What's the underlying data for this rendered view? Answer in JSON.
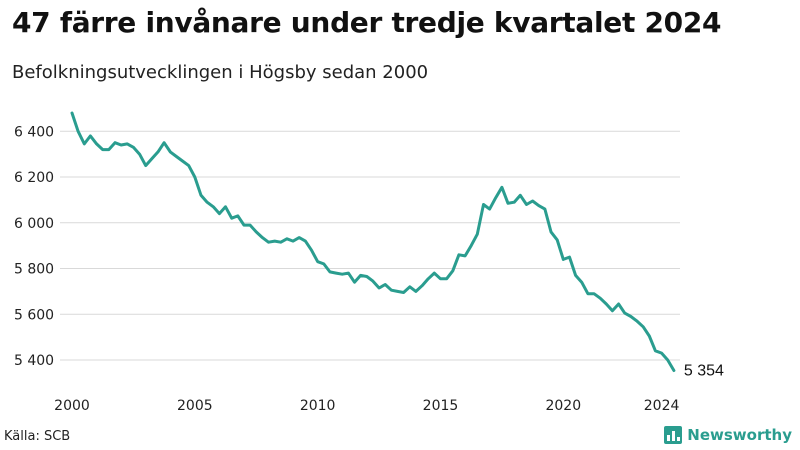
{
  "title": "47 färre invånare under tredje kvartalet 2024",
  "subtitle": "Befolkningsutvecklingen i Högsby sedan 2000",
  "source": "Källa: SCB",
  "brand": "Newsworthy",
  "colors": {
    "line": "#2a9d8f",
    "grid": "#d9d9d9",
    "brand": "#2a9d8f"
  },
  "chart_data": {
    "type": "line",
    "title": "47 färre invånare under tredje kvartalet 2024",
    "xlabel": "",
    "ylabel": "",
    "x_ticks": [
      2000,
      2005,
      2010,
      2015,
      2020,
      2024
    ],
    "x_tick_labels": [
      "2000",
      "2005",
      "2010",
      "2015",
      "2020",
      "2024"
    ],
    "y_ticks": [
      5400,
      5600,
      5800,
      6000,
      6200,
      6400
    ],
    "y_tick_labels": [
      "5 400",
      "5 600",
      "5 800",
      "6 000",
      "6 200",
      "6 400"
    ],
    "xlim": [
      2000,
      2024.75
    ],
    "ylim": [
      5330,
      6480
    ],
    "grid": true,
    "end_label": "5 354",
    "series": [
      {
        "name": "Befolkning",
        "x": [
          2000.0,
          2000.25,
          2000.5,
          2000.75,
          2001.0,
          2001.25,
          2001.5,
          2001.75,
          2002.0,
          2002.25,
          2002.5,
          2002.75,
          2003.0,
          2003.25,
          2003.5,
          2003.75,
          2004.0,
          2004.25,
          2004.5,
          2004.75,
          2005.0,
          2005.25,
          2005.5,
          2005.75,
          2006.0,
          2006.25,
          2006.5,
          2006.75,
          2007.0,
          2007.25,
          2007.5,
          2007.75,
          2008.0,
          2008.25,
          2008.5,
          2008.75,
          2009.0,
          2009.25,
          2009.5,
          2009.75,
          2010.0,
          2010.25,
          2010.5,
          2010.75,
          2011.0,
          2011.25,
          2011.5,
          2011.75,
          2012.0,
          2012.25,
          2012.5,
          2012.75,
          2013.0,
          2013.25,
          2013.5,
          2013.75,
          2014.0,
          2014.25,
          2014.5,
          2014.75,
          2015.0,
          2015.25,
          2015.5,
          2015.75,
          2016.0,
          2016.25,
          2016.5,
          2016.75,
          2017.0,
          2017.25,
          2017.5,
          2017.75,
          2018.0,
          2018.25,
          2018.5,
          2018.75,
          2019.0,
          2019.25,
          2019.5,
          2019.75,
          2020.0,
          2020.25,
          2020.5,
          2020.75,
          2021.0,
          2021.25,
          2021.5,
          2021.75,
          2022.0,
          2022.25,
          2022.5,
          2022.75,
          2023.0,
          2023.25,
          2023.5,
          2023.75,
          2024.0,
          2024.25,
          2024.5
        ],
        "values": [
          6480,
          6400,
          6345,
          6380,
          6345,
          6320,
          6320,
          6350,
          6340,
          6345,
          6330,
          6300,
          6250,
          6280,
          6310,
          6350,
          6310,
          6290,
          6270,
          6250,
          6200,
          6120,
          6090,
          6070,
          6040,
          6070,
          6020,
          6030,
          5990,
          5990,
          5960,
          5935,
          5915,
          5920,
          5915,
          5930,
          5920,
          5935,
          5920,
          5880,
          5830,
          5820,
          5785,
          5780,
          5775,
          5780,
          5740,
          5770,
          5765,
          5745,
          5715,
          5730,
          5705,
          5700,
          5695,
          5720,
          5700,
          5725,
          5755,
          5780,
          5755,
          5755,
          5790,
          5860,
          5855,
          5900,
          5950,
          6080,
          6060,
          6110,
          6155,
          6085,
          6090,
          6120,
          6080,
          6095,
          6075,
          6060,
          5960,
          5925,
          5840,
          5850,
          5770,
          5740,
          5690,
          5690,
          5670,
          5645,
          5615,
          5645,
          5605,
          5590,
          5570,
          5545,
          5505,
          5440,
          5430,
          5400,
          5354
        ]
      }
    ]
  }
}
